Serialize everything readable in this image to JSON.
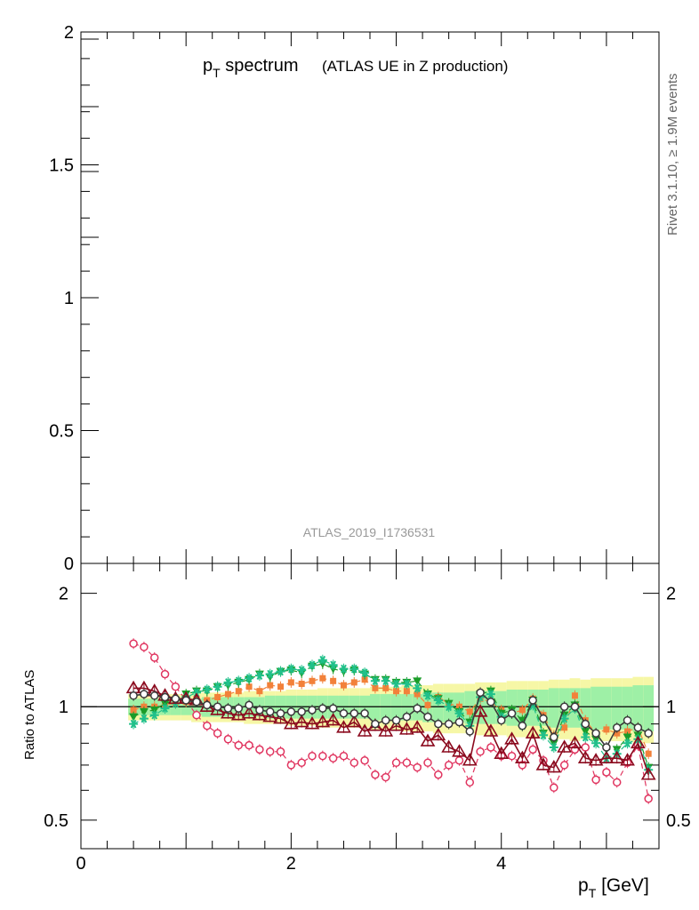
{
  "chart_data": {
    "type": "scatter",
    "title_main": "p",
    "title_sub": "T",
    "title_rest": " spectrum",
    "title_paren": "(ATLAS UE in Z production)",
    "side_label": "Rivet 3.1.10, ≥ 1.9M events",
    "analysis_label": "ATLAS_2019_I1736531",
    "upper_panel": {
      "y_ticks": [
        "2",
        "1.5",
        "1",
        "0.5",
        "0"
      ],
      "y_values": [
        2,
        1.5,
        1,
        0.5,
        0
      ],
      "ylim": [
        0,
        2.0
      ]
    },
    "ratio_panel": {
      "ylabel": "Ratio to ATLAS",
      "y_ticks": [
        "2",
        "1",
        "0.5"
      ],
      "y_tick_values": [
        2,
        1,
        0.5
      ],
      "ylim": [
        0.42,
        2.4
      ],
      "reference": 1.0
    },
    "x_ticks": [
      "0",
      "2",
      "4"
    ],
    "x_tick_values": [
      0,
      2,
      4
    ],
    "xlim": [
      0,
      5.5
    ],
    "xlabel_main": "p",
    "xlabel_sub": "T",
    "xlabel_rest": " [GeV]",
    "x": [
      0.5,
      0.6,
      0.7,
      0.8,
      0.9,
      1.0,
      1.1,
      1.2,
      1.3,
      1.4,
      1.5,
      1.6,
      1.7,
      1.8,
      1.9,
      2.0,
      2.1,
      2.2,
      2.3,
      2.4,
      2.5,
      2.6,
      2.7,
      2.8,
      2.9,
      3.0,
      3.1,
      3.2,
      3.3,
      3.4,
      3.5,
      3.6,
      3.7,
      3.8,
      3.9,
      4.0,
      4.1,
      4.2,
      4.3,
      4.4,
      4.5,
      4.6,
      4.7,
      4.8,
      4.9,
      5.0,
      5.1,
      5.2,
      5.3,
      5.4
    ],
    "band": {
      "inner": [
        0.05,
        0.05,
        0.05,
        0.05,
        0.05,
        0.05,
        0.05,
        0.06,
        0.06,
        0.06,
        0.06,
        0.06,
        0.06,
        0.07,
        0.07,
        0.07,
        0.07,
        0.07,
        0.07,
        0.07,
        0.07,
        0.07,
        0.07,
        0.08,
        0.08,
        0.08,
        0.08,
        0.08,
        0.09,
        0.09,
        0.09,
        0.09,
        0.1,
        0.1,
        0.1,
        0.1,
        0.11,
        0.11,
        0.11,
        0.11,
        0.12,
        0.12,
        0.12,
        0.12,
        0.13,
        0.13,
        0.13,
        0.13,
        0.14,
        0.14
      ],
      "outer": [
        0.08,
        0.08,
        0.08,
        0.08,
        0.08,
        0.08,
        0.09,
        0.09,
        0.09,
        0.09,
        0.09,
        0.1,
        0.1,
        0.1,
        0.1,
        0.11,
        0.11,
        0.11,
        0.12,
        0.12,
        0.12,
        0.12,
        0.12,
        0.13,
        0.13,
        0.13,
        0.14,
        0.14,
        0.14,
        0.15,
        0.15,
        0.15,
        0.15,
        0.16,
        0.16,
        0.16,
        0.17,
        0.17,
        0.17,
        0.17,
        0.18,
        0.18,
        0.19,
        0.18,
        0.19,
        0.19,
        0.19,
        0.19,
        0.2,
        0.2
      ]
    },
    "series": [
      {
        "name": "pink-open-circle",
        "color": "#e0345f",
        "marker": "open-circle",
        "dashed": true,
        "values": [
          1.47,
          1.44,
          1.35,
          1.22,
          1.13,
          1.04,
          0.95,
          0.89,
          0.85,
          0.82,
          0.79,
          0.79,
          0.77,
          0.76,
          0.76,
          0.7,
          0.71,
          0.74,
          0.74,
          0.73,
          0.74,
          0.71,
          0.72,
          0.66,
          0.65,
          0.71,
          0.71,
          0.69,
          0.71,
          0.66,
          0.7,
          0.72,
          0.63,
          0.76,
          0.78,
          0.74,
          0.74,
          0.7,
          0.77,
          0.72,
          0.61,
          0.7,
          0.77,
          0.78,
          0.64,
          0.67,
          0.63,
          0.71,
          0.79,
          0.57
        ]
      },
      {
        "name": "orange-square",
        "color": "#f2813a",
        "marker": "filled-square",
        "dashed": true,
        "values": [
          0.98,
          1.0,
          1.0,
          1.01,
          1.02,
          1.03,
          1.05,
          1.04,
          1.06,
          1.08,
          1.1,
          1.13,
          1.1,
          1.14,
          1.13,
          1.16,
          1.15,
          1.17,
          1.19,
          1.17,
          1.14,
          1.16,
          1.18,
          1.12,
          1.12,
          1.1,
          1.1,
          1.08,
          1.01,
          1.06,
          1.02,
          1.0,
          0.97,
          1.05,
          1.03,
          0.98,
          0.96,
          0.98,
          1.05,
          0.95,
          0.84,
          0.88,
          1.07,
          0.92,
          0.85,
          0.87,
          0.85,
          0.86,
          0.88,
          0.75
        ]
      },
      {
        "name": "green-triangle-down",
        "color": "#1a9c28",
        "marker": "filled-triangle-down",
        "dashed": true,
        "values": [
          0.94,
          0.97,
          0.98,
          1.02,
          1.04,
          1.08,
          1.1,
          1.1,
          1.13,
          1.14,
          1.16,
          1.18,
          1.22,
          1.2,
          1.24,
          1.25,
          1.23,
          1.28,
          1.3,
          1.26,
          1.24,
          1.25,
          1.22,
          1.18,
          1.18,
          1.16,
          1.16,
          1.17,
          1.08,
          1.05,
          1.02,
          0.97,
          0.91,
          1.08,
          1.1,
          0.96,
          0.98,
          0.92,
          1.04,
          0.85,
          0.8,
          0.95,
          1.01,
          0.86,
          0.82,
          0.77,
          0.77,
          0.83,
          0.84,
          0.69
        ]
      },
      {
        "name": "teal-star",
        "color": "#20c08a",
        "marker": "star",
        "dashed": true,
        "values": [
          0.9,
          0.93,
          0.95,
          0.99,
          1.02,
          1.06,
          1.09,
          1.11,
          1.13,
          1.16,
          1.17,
          1.19,
          1.21,
          1.22,
          1.24,
          1.26,
          1.25,
          1.29,
          1.33,
          1.29,
          1.26,
          1.26,
          1.23,
          1.17,
          1.17,
          1.15,
          1.15,
          1.12,
          1.07,
          1.04,
          1.0,
          0.96,
          0.89,
          1.06,
          1.08,
          0.94,
          0.96,
          0.89,
          1.01,
          0.84,
          0.78,
          0.93,
          0.99,
          0.83,
          0.8,
          0.73,
          0.75,
          0.8,
          0.82,
          0.68
        ]
      },
      {
        "name": "darkred-open-triangle",
        "color": "#8b0a1e",
        "marker": "open-triangle-up",
        "dashed": false,
        "values": [
          1.12,
          1.12,
          1.1,
          1.07,
          1.05,
          1.05,
          1.04,
          1.0,
          0.98,
          0.96,
          0.95,
          0.96,
          0.95,
          0.94,
          0.93,
          0.9,
          0.91,
          0.9,
          0.91,
          0.92,
          0.88,
          0.91,
          0.86,
          0.89,
          0.86,
          0.89,
          0.87,
          0.88,
          0.81,
          0.84,
          0.78,
          0.76,
          0.72,
          0.97,
          0.86,
          0.75,
          0.82,
          0.73,
          0.85,
          0.7,
          0.69,
          0.78,
          0.8,
          0.73,
          0.72,
          0.73,
          0.73,
          0.72,
          0.8,
          0.66
        ]
      },
      {
        "name": "black-open-circle",
        "color": "#3a3a3a",
        "marker": "open-circle",
        "dashed": false,
        "values": [
          1.07,
          1.08,
          1.07,
          1.06,
          1.05,
          1.04,
          1.03,
          1.01,
          1.0,
          0.99,
          0.99,
          1.01,
          0.98,
          0.97,
          0.96,
          0.97,
          0.97,
          0.98,
          0.99,
          0.99,
          0.96,
          0.96,
          0.96,
          0.9,
          0.92,
          0.92,
          0.94,
          0.99,
          0.94,
          0.9,
          0.9,
          0.91,
          0.86,
          1.09,
          1.03,
          0.92,
          0.96,
          0.89,
          1.04,
          0.93,
          0.83,
          1.0,
          1.0,
          0.9,
          0.85,
          0.78,
          0.88,
          0.92,
          0.88,
          0.85
        ]
      }
    ]
  }
}
